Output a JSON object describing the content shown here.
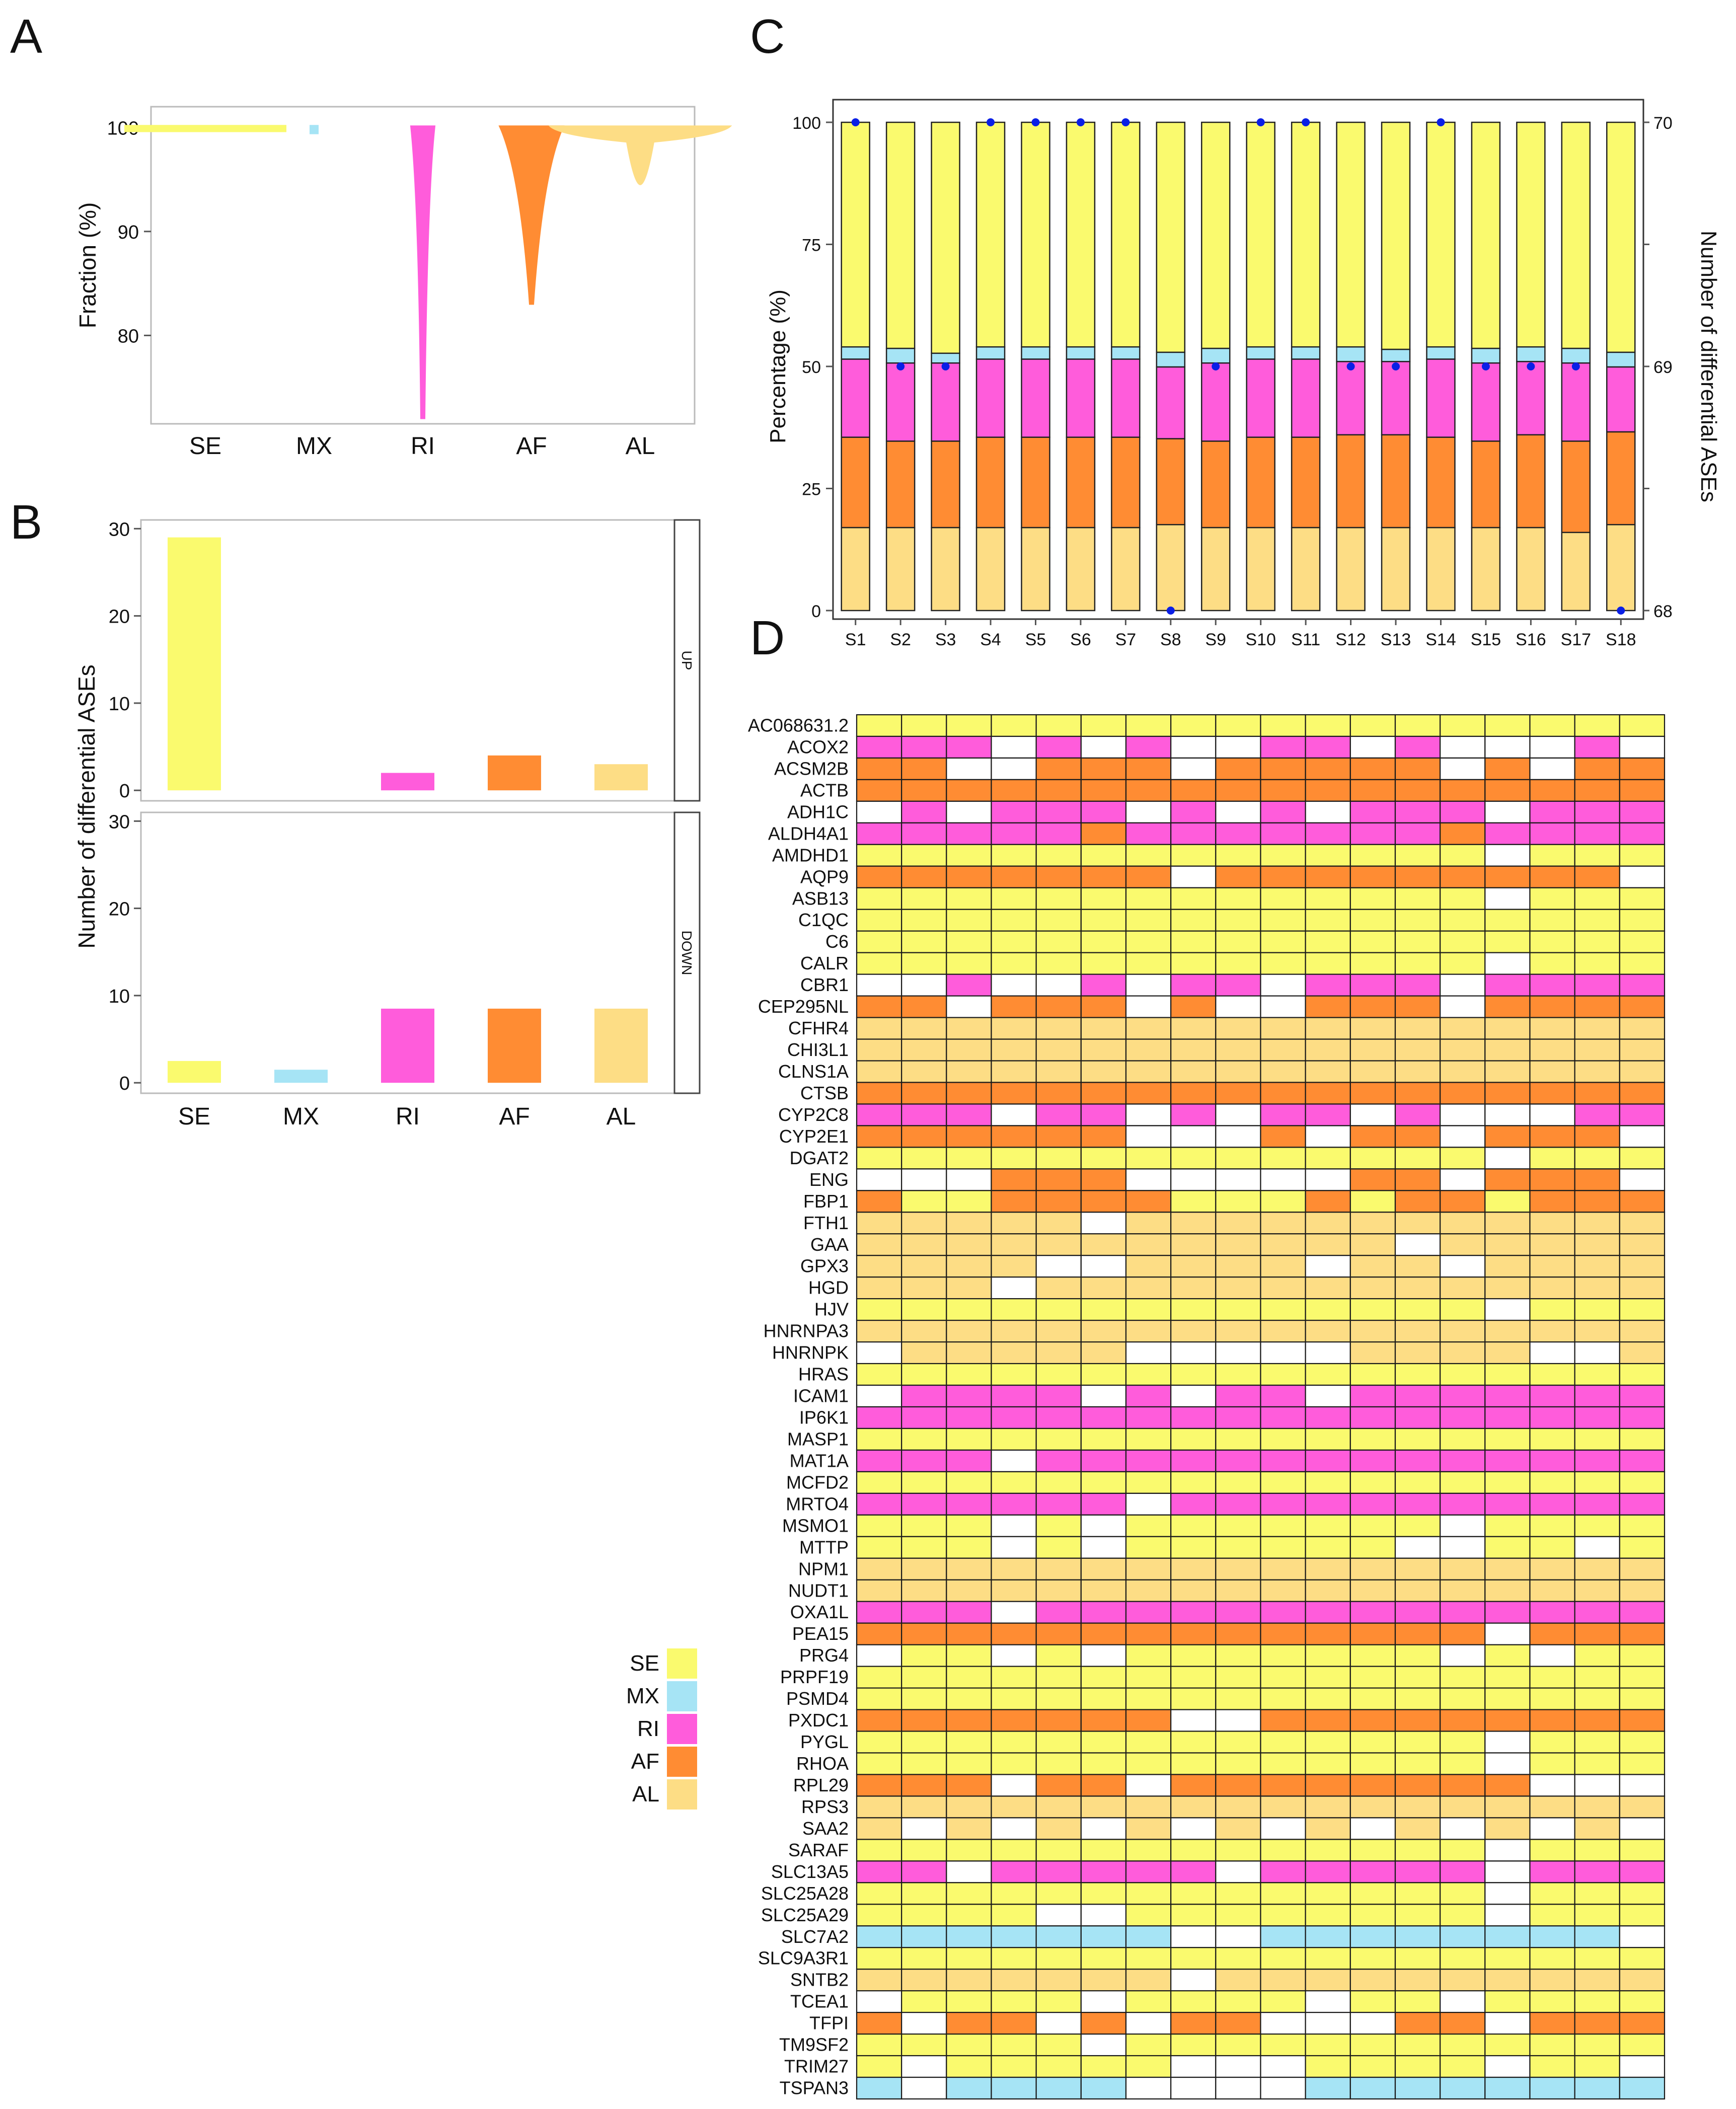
{
  "colors": {
    "SE": "#FAFA6E",
    "MX": "#A6E4F5",
    "RI": "#FF5CDB",
    "AF": "#FF8C33",
    "AL": "#FDDD85",
    "NA": "#FFFFFF",
    "dot": "#0A1FE6"
  },
  "panel_labels": {
    "A": "A",
    "B": "B",
    "C": "C",
    "D": "D"
  },
  "chart_data": [
    {
      "panel": "A",
      "type": "violin",
      "categories": [
        "SE",
        "MX",
        "RI",
        "AF",
        "AL"
      ],
      "ylabel": "Fraction (%)",
      "yticks": [
        80,
        90,
        100
      ],
      "ylim": [
        71.5,
        102
      ],
      "ranges": [
        [
          99.8,
          100
        ],
        [
          99.6,
          100
        ],
        [
          72,
          100
        ],
        [
          83,
          100
        ],
        [
          94.5,
          100
        ]
      ]
    },
    {
      "panel": "B",
      "type": "bar",
      "ylabel": "Number of differential ASEs",
      "categories": [
        "SE",
        "MX",
        "RI",
        "AF",
        "AL"
      ],
      "yticks": [
        0,
        10,
        20,
        30
      ],
      "ylim": [
        -1.2,
        31
      ],
      "facets": [
        {
          "label": "UP",
          "values": [
            29,
            0,
            2,
            4,
            3
          ]
        },
        {
          "label": "DOWN",
          "values": [
            2.5,
            1.5,
            8.5,
            8.5,
            8.5
          ]
        }
      ]
    },
    {
      "panel": "C",
      "type": "stacked_bar",
      "ylabel": "Percentage (%)",
      "y2label": "Number of differential ASEs",
      "yticks": [
        0,
        25,
        50,
        75,
        100
      ],
      "y2ticks": [
        68,
        69,
        70
      ],
      "categories": [
        "S1",
        "S2",
        "S3",
        "S4",
        "S5",
        "S6",
        "S7",
        "S8",
        "S9",
        "S10",
        "S11",
        "S12",
        "S13",
        "S14",
        "S15",
        "S16",
        "S17",
        "S18"
      ],
      "stack_order": [
        "AL",
        "AF",
        "RI",
        "MX",
        "SE"
      ],
      "series": [
        {
          "name": "AL",
          "values": [
            17,
            17,
            17,
            17,
            17,
            17,
            17,
            17.6,
            17,
            17,
            17,
            17,
            17,
            17,
            17,
            17,
            16,
            17.6
          ]
        },
        {
          "name": "AF",
          "values": [
            18.5,
            17.7,
            17.7,
            18.5,
            18.5,
            18.5,
            18.5,
            17.6,
            17.7,
            18.5,
            18.5,
            19,
            19,
            18.5,
            17.7,
            19,
            18.7,
            19
          ]
        },
        {
          "name": "RI",
          "values": [
            16,
            16,
            16,
            16,
            16,
            16,
            16,
            14.7,
            16,
            16,
            16,
            15,
            15,
            16,
            16,
            15,
            16,
            13.3
          ]
        },
        {
          "name": "MX",
          "values": [
            2.5,
            3,
            2,
            2.5,
            2.5,
            2.5,
            2.5,
            3,
            3,
            2.5,
            2.5,
            3,
            2.5,
            2.5,
            3,
            3,
            3,
            3
          ]
        },
        {
          "name": "SE",
          "values": [
            46,
            46.3,
            47.3,
            46,
            46,
            46,
            46,
            47.1,
            46.3,
            46,
            46,
            46,
            46.5,
            46,
            46.3,
            46,
            46.3,
            47.1
          ]
        }
      ],
      "counts": [
        70,
        69,
        69,
        70,
        70,
        70,
        70,
        68,
        69,
        70,
        70,
        69,
        69,
        70,
        69,
        69,
        69,
        68
      ]
    },
    {
      "panel": "D",
      "type": "heatmap",
      "columns": 18,
      "rows": [
        "AC068631.2",
        "ACOX2",
        "ACSM2B",
        "ACTB",
        "ADH1C",
        "ALDH4A1",
        "AMDHD1",
        "AQP9",
        "ASB13",
        "C1QC",
        "C6",
        "CALR",
        "CBR1",
        "CEP295NL",
        "CFHR4",
        "CHI3L1",
        "CLNS1A",
        "CTSB",
        "CYP2C8",
        "CYP2E1",
        "DGAT2",
        "ENG",
        "FBP1",
        "FTH1",
        "GAA",
        "GPX3",
        "HGD",
        "HJV",
        "HNRNPA3",
        "HNRNPK",
        "HRAS",
        "ICAM1",
        "IP6K1",
        "MASP1",
        "MAT1A",
        "MCFD2",
        "MRTO4",
        "MSMO1",
        "MTTP",
        "NPM1",
        "NUDT1",
        "OXA1L",
        "PEA15",
        "PRG4",
        "PRPF19",
        "PSMD4",
        "PXDC1",
        "PYGL",
        "RHOA",
        "RPL29",
        "RPS3",
        "SAA2",
        "SARAF",
        "SLC13A5",
        "SLC25A28",
        "SLC25A29",
        "SLC7A2",
        "SLC9A3R1",
        "SNTB2",
        "TCEA1",
        "TFPI",
        "TM9SF2",
        "TRIM27",
        "TSPAN3"
      ],
      "cells": [
        "SSSSSSSSSSSSSSSSSS",
        "RRRWRWRWWRRWRWWWRW",
        "FFWWFFFWFFFFFWFWFF",
        "FFFFFFFFFFFFFFFFFF",
        "WRWRRRWRWRWRRRWRRR",
        "RRRRRFRRRRRRRFRRRR",
        "SSSSSSSSSSSSSSWSSS",
        "FFFFFFFWFFFFFFFFFW",
        "SSSSSSSSSSSSSSWSSS",
        "SSSSSSSSSSSSSSSSSS",
        "SSSSSSSSSSSSSSSSSS",
        "SSSSSSSSSSSSSSWSSS",
        "WWRWWRWRRWRRRWRRRR",
        "FFWFFFWFWWFFFWFFFF",
        "LLLLLLLLLLLLLLLLLL",
        "LLLLLLLLLLLLLLLLLL",
        "LLLLLLLLLLLLLLLLLL",
        "FFFFFFFFFFFFFFFFFF",
        "RRRWRRWRWRRWRWWWRR",
        "FFFFFFWWWFWFFWFFFW",
        "SSSSSSSSSSSSSSWSSS",
        "WWWFFFWWWWWFFWFFFW",
        "FSSFFFFSSSFSFFSFFF",
        "LLLLLWLLLLLLLLLLLL",
        "LLLLLLLLLLLLWLLLLL",
        "LLLLWWLLLLWLLWLLLL",
        "LLLWLLLLLLLLLLLLLL",
        "SSSSSSSSSSSSSSWSSS",
        "LLLLLLLLLLLLLLLLLL",
        "WLLLLLWWWWWLLLLWWL",
        "SSSSSSSSSSSSSSSSSS",
        "WRRRRWRWRRWRRRRRRR",
        "RRRRRRRRRRRRRRRRRR",
        "SSSSSSSSSSSSSSSSSS",
        "RRRWRRRRRRRRRRRRRR",
        "SSSSSSSSSSSSSSSSSS",
        "RRRRRRWRRRRRRRRRRR",
        "SSSWSWSSSSSSSWSSSS",
        "SSSWSWSSSSSSWWSSWS",
        "LLLLLLLLLLLLLLLLLL",
        "LLLLLLLLLLLLLLLLLL",
        "RRRWRRRRRRRRRRRRRR",
        "FFFFFFFFFFFFFFWFFF",
        "WSSWSWSSSSSSSWSWSS",
        "SSSSSSSSSSSSSSSSSS",
        "SSSSSSSSSSSSSSSSSS",
        "FFFFFFFWWFFFFFFFFF",
        "SSSSSSSSSSSSSSWSSS",
        "SSSSSSSSSSSSSSWSSS",
        "FFFWFFWFFFFFFFFWWW",
        "LLLLLLLLLLLLLLLLLL",
        "LWLWLWLWLWLWLWLWLW",
        "SSSSSSSSSSSSSSWSSS",
        "RRWRRRRRWRRRRRWRRR",
        "SSSSSSSSSSSSSSWSSS",
        "SSSSWWSSSSSSSSWSSS",
        "MMMMMMMWWMMMMMMMMW",
        "SSSSSSSSSSSSSSSSSS",
        "LLLLLLLWLLLLLLLLLL",
        "WSSSSWSSSSWSSWSSSS",
        "FWFFWFWFFWWWFFWFFF",
        "SSSSSWSSSSSSSSSSSS",
        "SWSSSSSWWWSSSSWSSW",
        "MWMMMMWWWWMMMMMMMM"
      ]
    }
  ],
  "legend": [
    {
      "key": "SE",
      "label": "SE"
    },
    {
      "key": "MX",
      "label": "MX"
    },
    {
      "key": "RI",
      "label": "RI"
    },
    {
      "key": "AF",
      "label": "AF"
    },
    {
      "key": "AL",
      "label": "AL"
    }
  ]
}
